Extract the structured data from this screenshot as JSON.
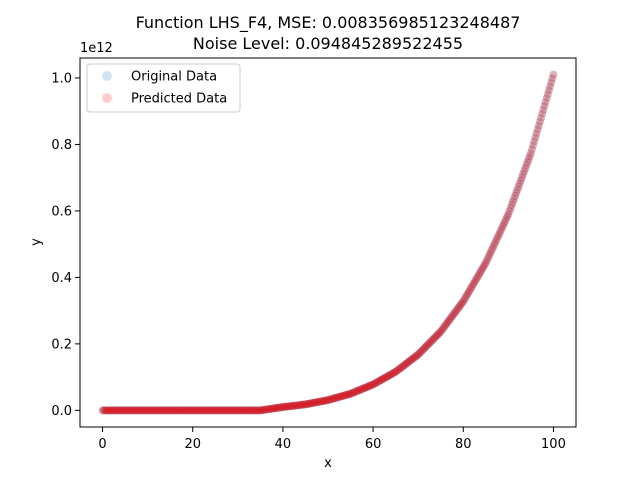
{
  "chart_data": {
    "type": "scatter",
    "title": "Function LHS_F4, MSE: 0.008356985123248487",
    "subtitle": "Noise Level: 0.094845289522455",
    "xlabel": "x",
    "ylabel": "y",
    "y_offset_label": "1e12",
    "xlim": [
      -5,
      105
    ],
    "ylim": [
      -50000000000.0,
      1060000000000.0
    ],
    "x_ticks": [
      0,
      20,
      40,
      60,
      80,
      100
    ],
    "x_tick_labels": [
      "0",
      "20",
      "40",
      "60",
      "80",
      "100"
    ],
    "y_ticks": [
      0.0,
      200000000000.0,
      400000000000.0,
      600000000000.0,
      800000000000.0,
      1000000000000.0
    ],
    "y_tick_labels": [
      "0.0",
      "0.2",
      "0.4",
      "0.6",
      "0.8",
      "1.0"
    ],
    "grid": false,
    "legend_position": "upper-left",
    "series": [
      {
        "name": "Original Data",
        "color": "#1f77b4",
        "alpha": 0.2,
        "x": [
          0,
          5,
          10,
          15,
          20,
          25,
          30,
          35,
          40,
          45,
          50,
          55,
          60,
          65,
          70,
          75,
          80,
          85,
          90,
          95,
          100
        ],
        "y": [
          0,
          0,
          0,
          0,
          0,
          0,
          0,
          0,
          10000000000.0,
          18000000000.0,
          31000000000.0,
          50000000000.0,
          78000000000.0,
          116000000000.0,
          168000000000.0,
          237000000000.0,
          328000000000.0,
          444000000000.0,
          590000000000.0,
          774000000000.0,
          1010000000000.0
        ]
      },
      {
        "name": "Predicted Data",
        "color": "#ff0000",
        "alpha": 0.2,
        "x": [
          0,
          5,
          10,
          15,
          20,
          25,
          30,
          35,
          40,
          45,
          50,
          55,
          60,
          65,
          70,
          75,
          80,
          85,
          90,
          95,
          100
        ],
        "y": [
          0,
          0,
          0,
          0,
          0,
          0,
          0,
          0,
          10000000000.0,
          18000000000.0,
          31000000000.0,
          50000000000.0,
          78000000000.0,
          116000000000.0,
          168000000000.0,
          237000000000.0,
          328000000000.0,
          444000000000.0,
          590000000000.0,
          774000000000.0,
          1010000000000.0
        ]
      }
    ]
  }
}
